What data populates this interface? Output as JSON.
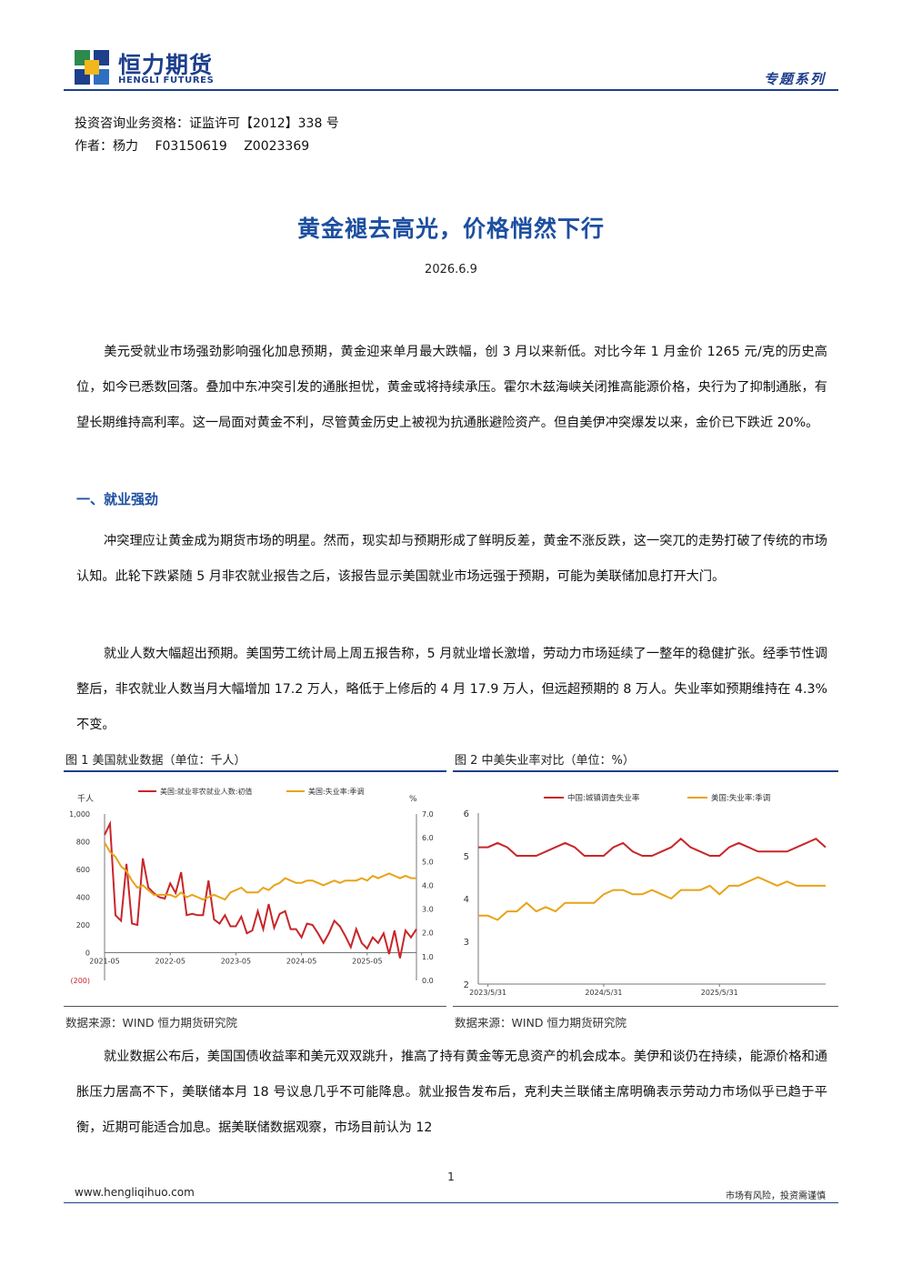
{
  "header": {
    "logo_cn": "恒力期货",
    "logo_en": "HENGLI FUTURES",
    "series_label": "专题系列"
  },
  "meta": {
    "license": "投资咨询业务资格：证监许可【2012】338 号",
    "author": "作者：杨力　 F03150619　 Z0023369"
  },
  "title": "黄金褪去高光，价格悄然下行",
  "date": "2026.6.9",
  "paragraphs": {
    "p1": "美元受就业市场强劲影响强化加息预期，黄金迎来单月最大跌幅，创 3 月以来新低。对比今年 1 月金价 1265 元/克的历史高位，如今已悉数回落。叠加中东冲突引发的通胀担忧，黄金或将持续承压。霍尔木兹海峡关闭推高能源价格，央行为了抑制通胀，有望长期维持高利率。这一局面对黄金不利，尽管黄金历史上被视为抗通胀避险资产。但自美伊冲突爆发以来，金价已下跌近 20%。",
    "section1": "一、就业强劲",
    "p2": "冲突理应让黄金成为期货市场的明星。然而，现实却与预期形成了鲜明反差，黄金不涨反跌，这一突兀的走势打破了传统的市场认知。此轮下跌紧随 5 月非农就业报告之后，该报告显示美国就业市场远强于预期，可能为美联储加息打开大门。",
    "p3": "就业人数大幅超出预期。美国劳工统计局上周五报告称，5 月就业增长激增，劳动力市场延续了一整年的稳健扩张。经季节性调整后，非农就业人数当月大幅增加 17.2 万人，略低于上修后的 4 月 17.9 万人，但远超预期的 8 万人。失业率如预期维持在 4.3%不变。",
    "p4": "就业数据公布后，美国国债收益率和美元双双跳升，推高了持有黄金等无息资产的机会成本。美伊和谈仍在持续，能源价格和通胀压力居高不下，美联储本月 18 号议息几乎不可能降息。就业报告发布后，克利夫兰联储主席明确表示劳动力市场似乎已趋于平衡，近期可能适合加息。据美联储数据观察，市场目前认为 12"
  },
  "figures": {
    "fig1_title": "图 1  美国就业数据（单位：千人）",
    "fig2_title": "图 2  中美失业率对比（单位：%）",
    "source1": "数据来源：WIND 恒力期货研究院",
    "source2": "数据来源：WIND 恒力期货研究院"
  },
  "chart_data": [
    {
      "type": "line",
      "title": "图 1  美国就业数据（单位：千人）",
      "ylabel": "千人",
      "y2label": "%",
      "ylim": [
        -200,
        1000
      ],
      "y2lim": [
        0,
        7
      ],
      "yticks": [
        "1,000",
        "800",
        "600",
        "400",
        "200",
        "0",
        "(200)"
      ],
      "y2ticks": [
        "7.0",
        "6.0",
        "5.0",
        "4.0",
        "3.0",
        "2.0",
        "1.0",
        "0.0"
      ],
      "xticks": [
        "2021-05",
        "2022-05",
        "2023-05",
        "2024-05",
        "2025-05"
      ],
      "series": [
        {
          "name": "美国:就业非农就业人数:初值",
          "axis": "left",
          "color": "#c8262a",
          "values": [
            850,
            930,
            270,
            230,
            640,
            210,
            200,
            680,
            470,
            430,
            400,
            390,
            500,
            430,
            580,
            270,
            280,
            270,
            270,
            520,
            240,
            210,
            270,
            190,
            190,
            260,
            140,
            160,
            300,
            170,
            350,
            180,
            280,
            300,
            170,
            170,
            110,
            210,
            200,
            140,
            70,
            140,
            230,
            190,
            120,
            40,
            170,
            70,
            30,
            110,
            70,
            140,
            -10,
            160,
            -40,
            160,
            110,
            170
          ]
        },
        {
          "name": "美国:失业率:季调",
          "axis": "right",
          "color": "#e8a317",
          "values": [
            5.8,
            5.4,
            5.2,
            4.8,
            4.6,
            4.2,
            3.9,
            4.0,
            3.8,
            3.6,
            3.6,
            3.6,
            3.6,
            3.5,
            3.7,
            3.5,
            3.6,
            3.5,
            3.4,
            3.5,
            3.6,
            3.5,
            3.4,
            3.7,
            3.8,
            3.9,
            3.7,
            3.7,
            3.7,
            3.9,
            3.8,
            4.0,
            4.1,
            4.3,
            4.2,
            4.1,
            4.1,
            4.2,
            4.2,
            4.1,
            4.0,
            4.1,
            4.2,
            4.1,
            4.2,
            4.2,
            4.2,
            4.3,
            4.2,
            4.4,
            4.3,
            4.4,
            4.5,
            4.4,
            4.3,
            4.4,
            4.3,
            4.3
          ]
        }
      ]
    },
    {
      "type": "line",
      "title": "图 2  中美失业率对比（单位：%）",
      "ylim": [
        2,
        6
      ],
      "yticks": [
        "6",
        "5",
        "4",
        "3",
        "2"
      ],
      "xticks": [
        "2023/5/31",
        "2024/5/31",
        "2025/5/31"
      ],
      "series": [
        {
          "name": "中国:城镇调查失业率",
          "color": "#c8262a",
          "values": [
            5.2,
            5.2,
            5.3,
            5.2,
            5.0,
            5.0,
            5.0,
            5.1,
            5.2,
            5.3,
            5.2,
            5.0,
            5.0,
            5.0,
            5.2,
            5.3,
            5.1,
            5.0,
            5.0,
            5.1,
            5.2,
            5.4,
            5.2,
            5.1,
            5.0,
            5.0,
            5.2,
            5.3,
            5.2,
            5.1,
            5.1,
            5.1,
            5.1,
            5.2,
            5.3,
            5.4,
            5.2
          ]
        },
        {
          "name": "美国:失业率:季调",
          "color": "#e8a317",
          "values": [
            3.6,
            3.6,
            3.5,
            3.7,
            3.7,
            3.9,
            3.7,
            3.8,
            3.7,
            3.9,
            3.9,
            3.9,
            3.9,
            4.1,
            4.2,
            4.2,
            4.1,
            4.1,
            4.2,
            4.1,
            4.0,
            4.2,
            4.2,
            4.2,
            4.3,
            4.1,
            4.3,
            4.3,
            4.4,
            4.5,
            4.4,
            4.3,
            4.4,
            4.3,
            4.3,
            4.3,
            4.3
          ]
        }
      ]
    }
  ],
  "footer": {
    "page_number": "1",
    "url": "www.hengliqihuo.com",
    "risk": "市场有风险，投资需谨慎"
  }
}
